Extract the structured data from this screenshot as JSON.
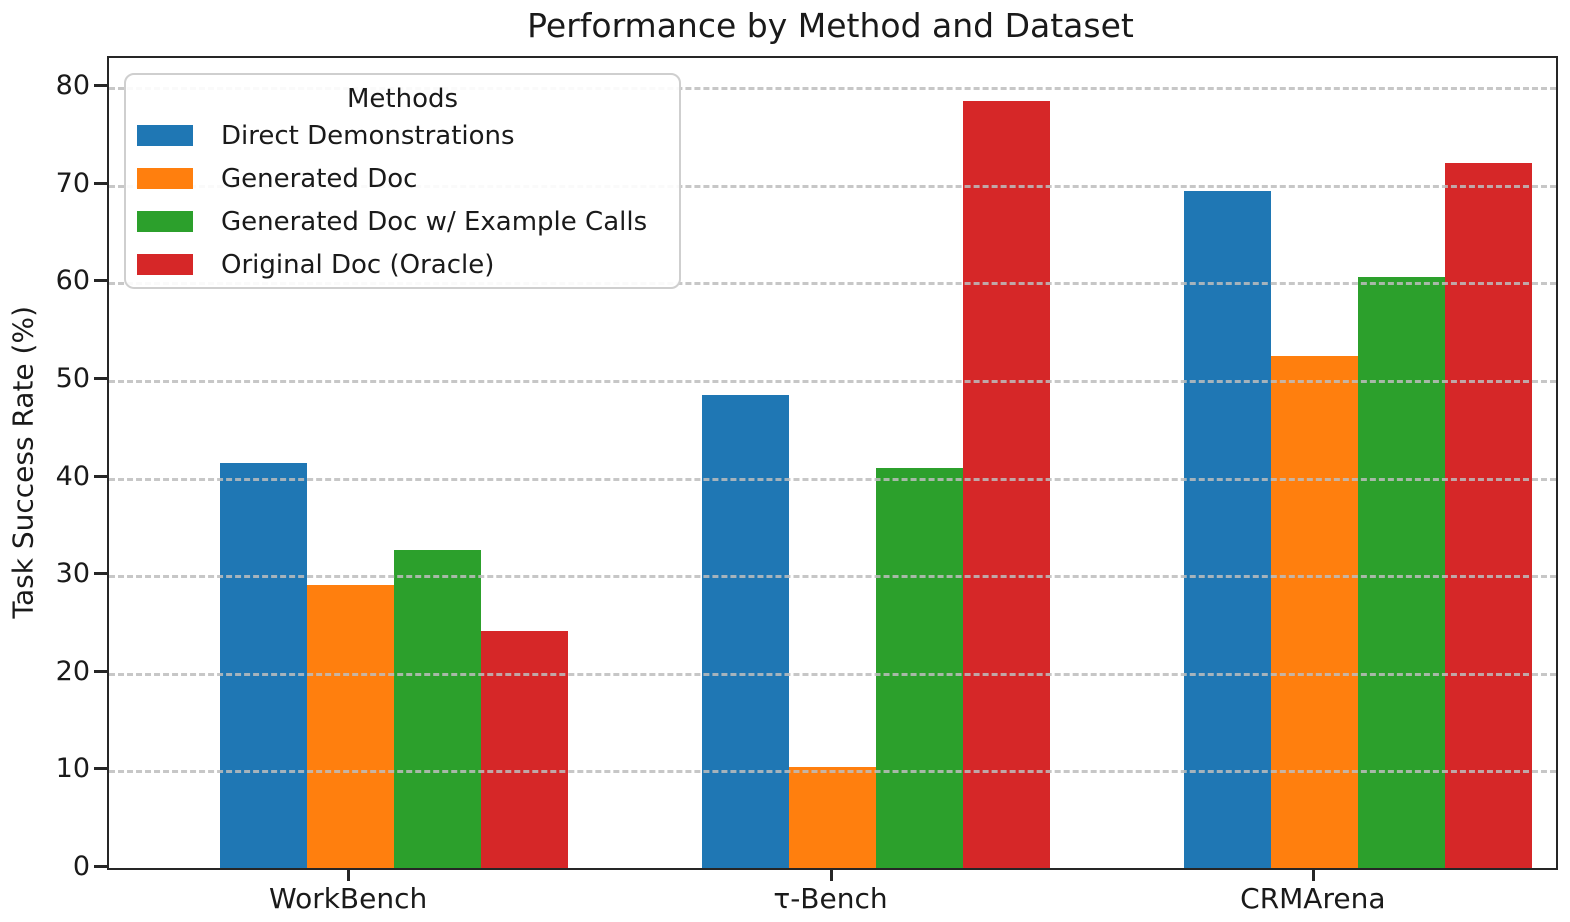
{
  "title": "Performance by Method and Dataset",
  "axes": {
    "ylabel": "Task Success Rate (%)",
    "yticks": [
      0,
      10,
      20,
      30,
      40,
      50,
      60,
      70,
      80
    ],
    "ylim": [
      0,
      83
    ],
    "xticklabels": [
      "WorkBench",
      "τ-Bench",
      "CRMArena"
    ]
  },
  "legend": {
    "title": "Methods",
    "position": "upper-left"
  },
  "colors": {
    "blue": "#1f77b4",
    "orange": "#ff7f0e",
    "green": "#2ca02c",
    "red": "#d62728",
    "grid": "#bdbdbd",
    "spine": "#262626"
  },
  "chart_data": {
    "type": "bar",
    "title": "Performance by Method and Dataset",
    "categories": [
      "WorkBench",
      "τ-Bench",
      "CRMArena"
    ],
    "series": [
      {
        "name": "Direct Demonstrations",
        "color": "#1f77b4",
        "values": [
          41.5,
          48.5,
          69.4
        ]
      },
      {
        "name": "Generated Doc",
        "color": "#ff7f0e",
        "values": [
          29.0,
          10.4,
          52.5
        ]
      },
      {
        "name": "Generated Doc w/ Example Calls",
        "color": "#2ca02c",
        "values": [
          32.6,
          41.0,
          60.6
        ]
      },
      {
        "name": "Original Doc (Oracle)",
        "color": "#d62728",
        "values": [
          24.3,
          78.6,
          72.2
        ]
      }
    ],
    "xlabel": "",
    "ylabel": "Task Success Rate (%)",
    "ylim": [
      0,
      83
    ],
    "grid": "horizontal-dashed",
    "legend_title": "Methods",
    "legend_position": "upper-left"
  }
}
